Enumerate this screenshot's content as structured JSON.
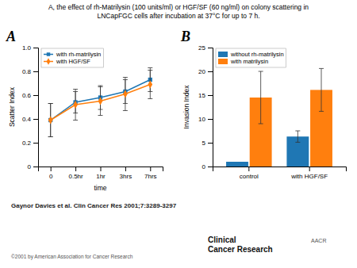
{
  "title": [
    "A, the effect of rh-Matrilysin (100 units/ml) or HGF/SF (60 ng/ml) on colony scattering in",
    "LNCapFGC cells after incubation at 37°C for up to 7 h."
  ],
  "annotations": [
    "Gaynor Davies et al. Clin Cancer Res 2001;7:3289-3297",
    "©2001 by American Association for Cancer Research",
    "Clinical\nCancer Research",
    "AACR"
  ],
  "chart_data": [
    {
      "type": "line",
      "title": "A",
      "xlabel": "time",
      "ylabel": "Scatter Index",
      "categories": [
        "0",
        "0.5hr",
        "1hr",
        "3hrs",
        "7hrs"
      ],
      "series": [
        {
          "name": "with rh-matrilysin",
          "marker": "square",
          "line_style": "solid",
          "values": [
            0.39,
            0.54,
            0.58,
            0.63,
            0.73
          ],
          "errors": [
            0.14,
            0.09,
            0.1,
            0.1,
            0.1
          ]
        },
        {
          "name": "with HGF/SF",
          "marker": "diamond",
          "line_style": "solid",
          "values": [
            0.39,
            0.52,
            0.55,
            0.61,
            0.69
          ],
          "errors": [
            0.14,
            0.13,
            0.12,
            0.14,
            0.12
          ]
        }
      ],
      "ylim": [
        0,
        1.0
      ],
      "yticks": [
        0,
        0.2,
        0.4,
        0.6,
        0.8,
        {
          "value": 1.0,
          "label": "1.0"
        }
      ],
      "grid": false,
      "legend": "upper left"
    },
    {
      "type": "bar",
      "title": "B",
      "ylabel": "Invasion Index",
      "categories": [
        "control",
        "with HGF/SF"
      ],
      "series": [
        {
          "name": "without rh-matrilysin",
          "values": [
            1.0,
            6.3
          ],
          "errors": [
            0.0,
            1.2
          ]
        },
        {
          "name": "with matrilysin",
          "values": [
            14.5,
            16.1
          ],
          "errors": [
            5.5,
            4.5
          ]
        }
      ],
      "ylim": [
        0,
        25
      ],
      "yticks": [
        0,
        5,
        10,
        15,
        20,
        25
      ],
      "grid": false,
      "legend": "upper left"
    }
  ]
}
